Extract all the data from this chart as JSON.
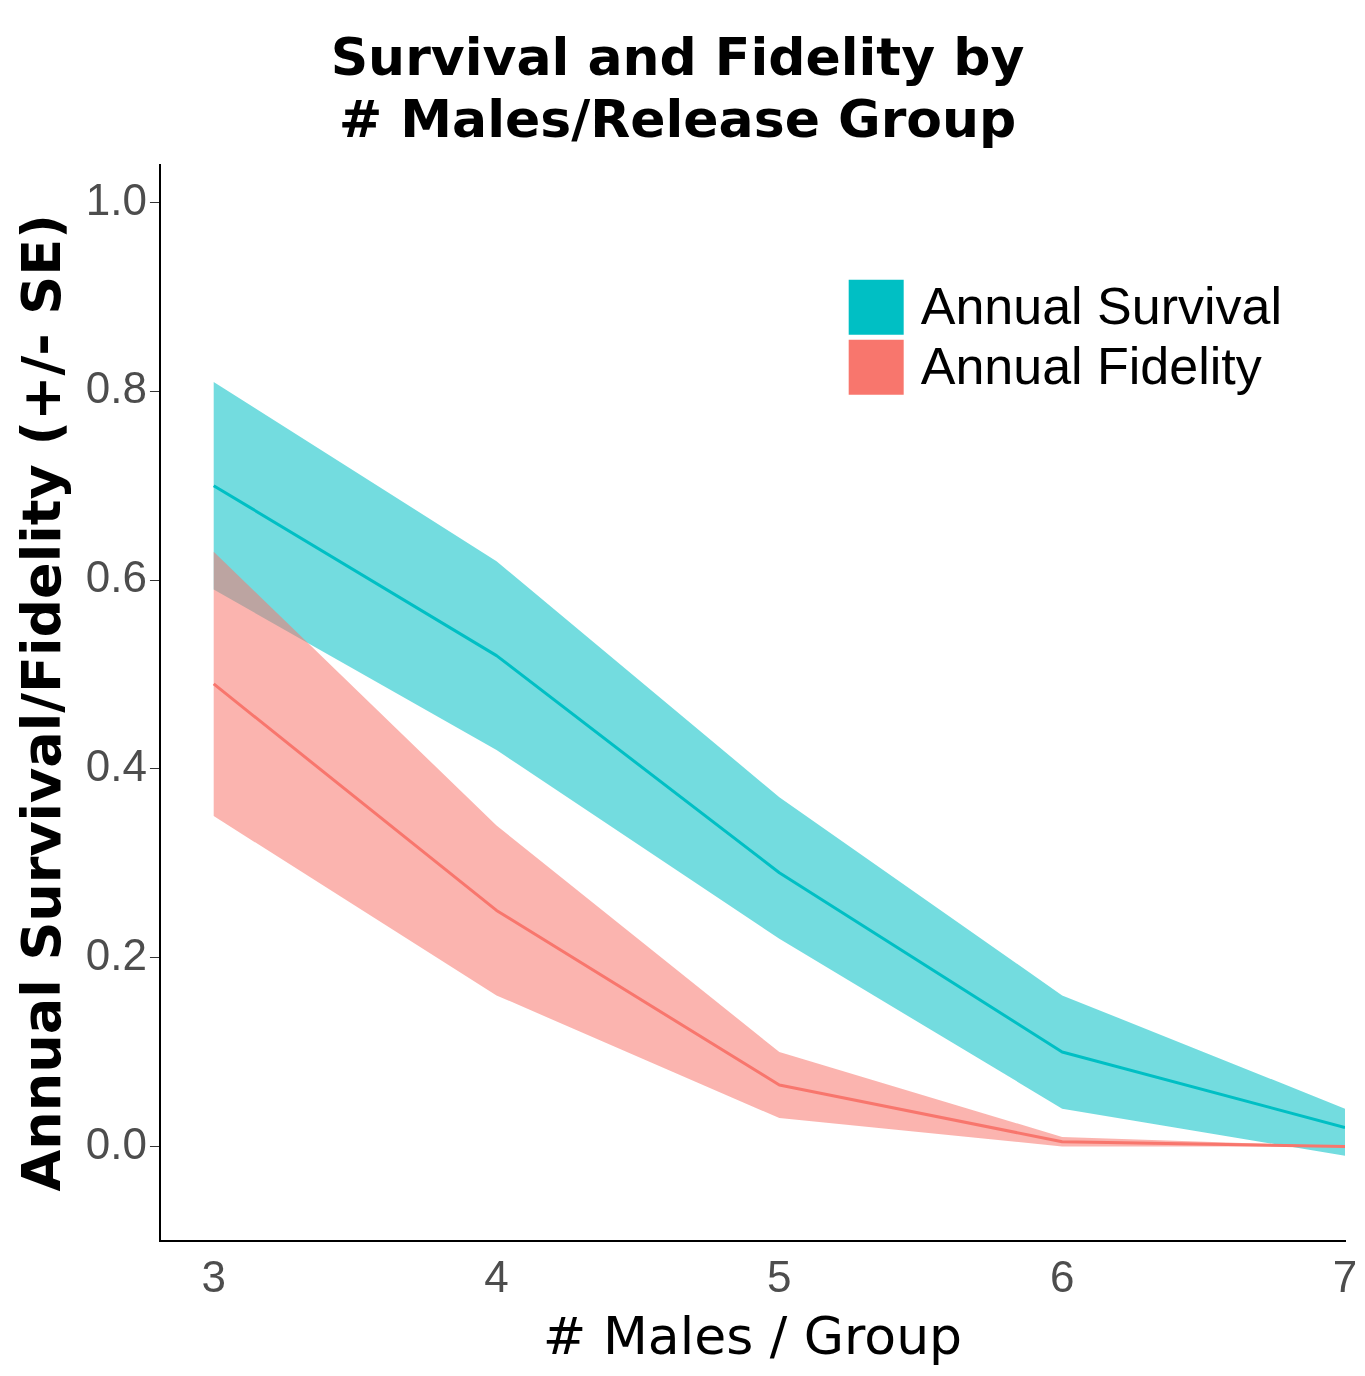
{
  "chart_data": {
    "type": "line",
    "title": [
      "Survival and Fidelity by",
      "# Males/Release Group"
    ],
    "xlabel": "# Males / Group",
    "ylabel": "Annual Survival/Fidelity (+/- SE)",
    "x": [
      3,
      4,
      5,
      6,
      7
    ],
    "xlim": [
      2.81,
      7
    ],
    "xticks": [
      3,
      4,
      5,
      6,
      7
    ],
    "ylim": [
      -0.1,
      1.04
    ],
    "yticks": [
      {
        "value": 0,
        "label": "0.0"
      },
      0.2,
      0.4,
      0.6,
      0.8,
      {
        "value": 1,
        "label": "1.0"
      }
    ],
    "grid": false,
    "legend": "top right",
    "marker": "none",
    "line_style": "solid",
    "series": [
      {
        "name": "Annual Survival",
        "color": "#00bfc4",
        "values": [
          0.7,
          0.52,
          0.29,
          0.1,
          0.02
        ],
        "lower": [
          0.59,
          0.42,
          0.22,
          0.04,
          -0.01
        ],
        "upper": [
          0.81,
          0.62,
          0.37,
          0.16,
          0.04
        ]
      },
      {
        "name": "Annual Fidelity",
        "color": "#f8766d",
        "values": [
          0.49,
          0.25,
          0.065,
          0.005,
          0.0
        ],
        "lower": [
          0.35,
          0.16,
          0.03,
          0.0,
          0.0
        ],
        "upper": [
          0.63,
          0.34,
          0.1,
          0.01,
          0.0
        ]
      }
    ]
  }
}
